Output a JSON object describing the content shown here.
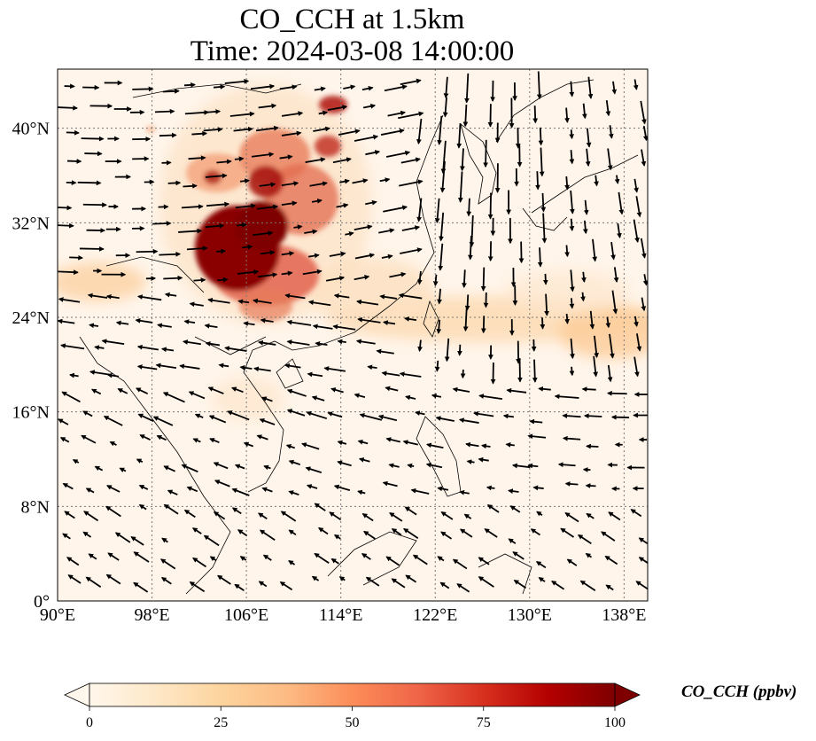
{
  "title": {
    "line1": "CO_CCH at 1.5km",
    "line2": "Time: 2024-03-08 14:00:00"
  },
  "map": {
    "variable": "CO_CCH",
    "lon_range": [
      90,
      140
    ],
    "lat_range": [
      0,
      45
    ],
    "lon_ticks": [
      {
        "value": 90,
        "label": "90°E"
      },
      {
        "value": 98,
        "label": "98°E"
      },
      {
        "value": 106,
        "label": "106°E"
      },
      {
        "value": 114,
        "label": "114°E"
      },
      {
        "value": 122,
        "label": "122°E"
      },
      {
        "value": 130,
        "label": "130°E"
      },
      {
        "value": 138,
        "label": "138°E"
      }
    ],
    "lat_ticks": [
      {
        "value": 0,
        "label": "0°"
      },
      {
        "value": 8,
        "label": "8°N"
      },
      {
        "value": 16,
        "label": "16°N"
      },
      {
        "value": 24,
        "label": "24°N"
      },
      {
        "value": 32,
        "label": "32°N"
      },
      {
        "value": 40,
        "label": "40°N"
      }
    ],
    "gridlines": true,
    "colormap": "OrRd",
    "wind_vectors": true
  },
  "colorbar": {
    "label": "CO_CCH (ppbv)",
    "range": [
      0,
      100
    ],
    "extend": "both",
    "ticks": [
      {
        "value": 0,
        "label": "0"
      },
      {
        "value": 25,
        "label": "25"
      },
      {
        "value": 50,
        "label": "50"
      },
      {
        "value": 75,
        "label": "75"
      },
      {
        "value": 100,
        "label": "100"
      }
    ]
  },
  "colors": {
    "low": "#fff7ec",
    "mid": "#fdbb84",
    "high": "#7f0000",
    "wind": "#000000"
  }
}
